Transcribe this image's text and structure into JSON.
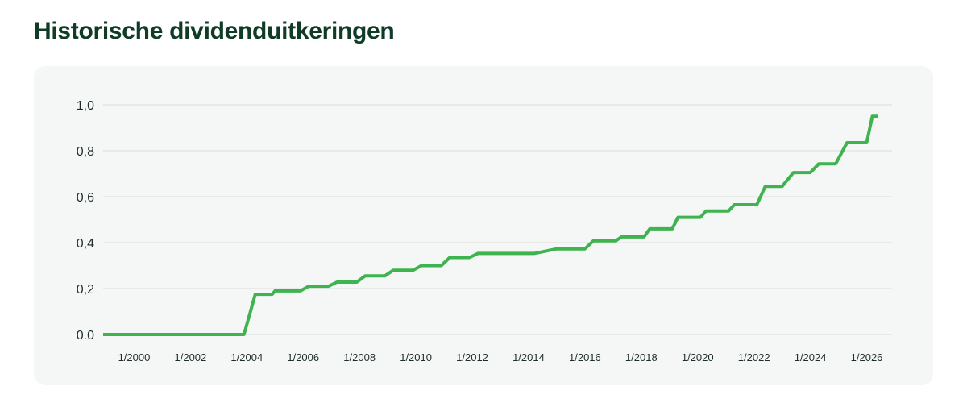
{
  "title": "Historische dividenduitkeringen",
  "colors": {
    "line": "#3fb34f",
    "title": "#0f3b27",
    "grid": "#dfe3e1",
    "card": "#f5f7f6"
  },
  "chart_data": {
    "type": "line",
    "title": "",
    "xlabel": "",
    "ylabel": "",
    "xlim": [
      1998.9,
      2026.9
    ],
    "ylim": [
      0,
      1.0
    ],
    "y_ticks": [
      {
        "value": 0.0,
        "label": "0.0"
      },
      {
        "value": 0.2,
        "label": "0,2"
      },
      {
        "value": 0.4,
        "label": "0,4"
      },
      {
        "value": 0.6,
        "label": "0,6"
      },
      {
        "value": 0.8,
        "label": "0,8"
      },
      {
        "value": 1.0,
        "label": "1,0"
      }
    ],
    "x_ticks": [
      {
        "value": 2000,
        "label": "1/2000"
      },
      {
        "value": 2002,
        "label": "1/2002"
      },
      {
        "value": 2004,
        "label": "1/2004"
      },
      {
        "value": 2006,
        "label": "1/2006"
      },
      {
        "value": 2008,
        "label": "1/2008"
      },
      {
        "value": 2010,
        "label": "1/2010"
      },
      {
        "value": 2012,
        "label": "1/2012"
      },
      {
        "value": 2014,
        "label": "1/2014"
      },
      {
        "value": 2016,
        "label": "1/2016"
      },
      {
        "value": 2018,
        "label": "1/2018"
      },
      {
        "value": 2020,
        "label": "1/2020"
      },
      {
        "value": 2022,
        "label": "1/2022"
      },
      {
        "value": 2024,
        "label": "1/2024"
      },
      {
        "value": 2026,
        "label": "1/2026"
      }
    ],
    "grid": true,
    "legend": "none",
    "series": [
      {
        "points": [
          [
            1998.9,
            0.0
          ],
          [
            2003.9,
            0.0
          ],
          [
            2004.3,
            0.175
          ],
          [
            2004.9,
            0.175
          ],
          [
            2005.0,
            0.19
          ],
          [
            2005.9,
            0.19
          ],
          [
            2006.2,
            0.21
          ],
          [
            2006.9,
            0.21
          ],
          [
            2007.2,
            0.228
          ],
          [
            2007.9,
            0.228
          ],
          [
            2008.2,
            0.255
          ],
          [
            2008.9,
            0.255
          ],
          [
            2009.2,
            0.28
          ],
          [
            2009.9,
            0.28
          ],
          [
            2010.2,
            0.3
          ],
          [
            2010.9,
            0.3
          ],
          [
            2011.2,
            0.335
          ],
          [
            2011.9,
            0.335
          ],
          [
            2012.2,
            0.353
          ],
          [
            2014.2,
            0.353
          ],
          [
            2015.0,
            0.373
          ],
          [
            2016.0,
            0.373
          ],
          [
            2016.3,
            0.408
          ],
          [
            2017.1,
            0.408
          ],
          [
            2017.3,
            0.425
          ],
          [
            2018.1,
            0.425
          ],
          [
            2018.3,
            0.46
          ],
          [
            2019.1,
            0.46
          ],
          [
            2019.3,
            0.51
          ],
          [
            2020.1,
            0.51
          ],
          [
            2020.3,
            0.538
          ],
          [
            2021.1,
            0.538
          ],
          [
            2021.3,
            0.565
          ],
          [
            2022.1,
            0.565
          ],
          [
            2022.4,
            0.645
          ],
          [
            2023.0,
            0.645
          ],
          [
            2023.4,
            0.705
          ],
          [
            2024.0,
            0.705
          ],
          [
            2024.3,
            0.743
          ],
          [
            2024.9,
            0.743
          ],
          [
            2025.3,
            0.835
          ],
          [
            2026.0,
            0.835
          ],
          [
            2026.2,
            0.95
          ],
          [
            2026.4,
            0.95
          ]
        ]
      }
    ]
  }
}
